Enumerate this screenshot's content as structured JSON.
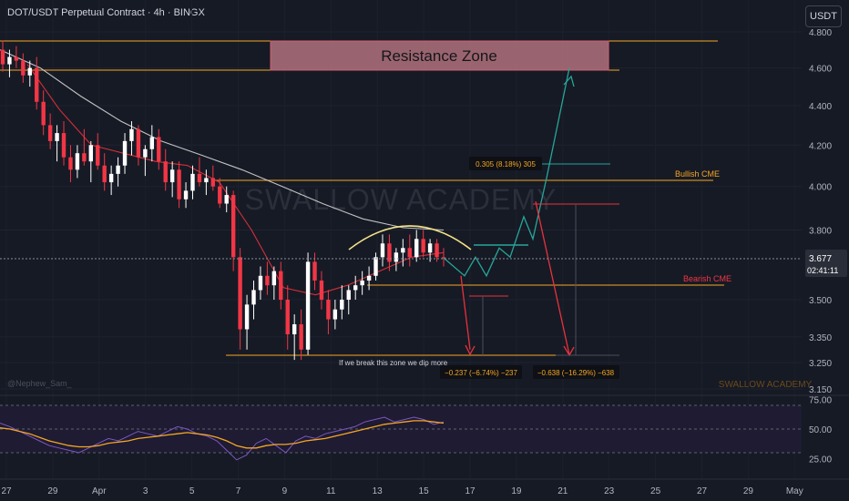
{
  "header": {
    "title": "DOT/USDT Perpetual Contract · 4h · BINGX",
    "currency_button": "USDT"
  },
  "price_tag": {
    "price": "3.677",
    "countdown": "02:41:11"
  },
  "watermark": "SWALLOW ACADEMY",
  "watermark_small": "SWALLOW ACADEMY",
  "author": "@Nephew_Sam_",
  "annotations": {
    "resistance_zone": "Resistance Zone",
    "bullish_cme": "Bullish CME",
    "bearish_cme": "Bearish CME",
    "break_note": "If we break this zone we dip more",
    "measure_up": "0.305 (8.18%) 305",
    "measure_down1": "−0.237 (−6.74%) −237",
    "measure_down2": "−0.638 (−16.29%) −638"
  },
  "colors": {
    "background": "#161a25",
    "up": "#ffffff",
    "down": "#f23645",
    "zone_line": "#f5a623",
    "resistance_fill": "#b0727c",
    "ma_slow": "#e0e0e0",
    "ma_fast": "#e8323c",
    "bull_path": "#26a69a",
    "bear_path": "#e8323c",
    "rsi": "#7e57c2",
    "rsi_ma": "#f5a623"
  },
  "chart_data": [
    {
      "type": "candlestick",
      "title": "DOT/USDT Perpetual Contract · 4h · BINGX",
      "x_ticks": [
        "27",
        "29",
        "Apr",
        "3",
        "5",
        "7",
        "9",
        "11",
        "13",
        "15",
        "17",
        "19",
        "21",
        "23",
        "25",
        "27",
        "29",
        "May"
      ],
      "y_ticks": [
        "4.800",
        "4.600",
        "4.400",
        "4.200",
        "4.000",
        "3.800",
        "3.677",
        "3.500",
        "3.350",
        "3.250",
        "3.150"
      ],
      "y_scale": "log",
      "ylim": [
        3.13,
        4.85
      ],
      "last_price": 3.677,
      "levels": {
        "resistance_zone": [
          4.6,
          4.75
        ],
        "bullish_cme": 4.03,
        "bearish_cme": 3.6,
        "support": 3.28
      },
      "ohlc": [
        [
          4.7,
          4.75,
          4.58,
          4.62
        ],
        [
          4.62,
          4.7,
          4.55,
          4.66
        ],
        [
          4.66,
          4.72,
          4.6,
          4.64
        ],
        [
          4.64,
          4.68,
          4.52,
          4.56
        ],
        [
          4.56,
          4.64,
          4.5,
          4.6
        ],
        [
          4.6,
          4.66,
          4.38,
          4.42
        ],
        [
          4.42,
          4.48,
          4.25,
          4.3
        ],
        [
          4.3,
          4.36,
          4.18,
          4.22
        ],
        [
          4.22,
          4.3,
          4.12,
          4.26
        ],
        [
          4.26,
          4.32,
          4.1,
          4.14
        ],
        [
          4.14,
          4.2,
          4.02,
          4.08
        ],
        [
          4.08,
          4.2,
          4.04,
          4.16
        ],
        [
          4.16,
          4.28,
          4.1,
          4.12
        ],
        [
          4.12,
          4.22,
          4.02,
          4.2
        ],
        [
          4.2,
          4.26,
          4.08,
          4.1
        ],
        [
          4.1,
          4.16,
          3.98,
          4.02
        ],
        [
          4.02,
          4.1,
          3.96,
          4.06
        ],
        [
          4.06,
          4.14,
          4.0,
          4.1
        ],
        [
          4.1,
          4.26,
          4.06,
          4.22
        ],
        [
          4.22,
          4.32,
          4.15,
          4.28
        ],
        [
          4.28,
          4.3,
          4.1,
          4.14
        ],
        [
          4.14,
          4.2,
          4.05,
          4.18
        ],
        [
          4.18,
          4.3,
          4.12,
          4.24
        ],
        [
          4.24,
          4.28,
          4.08,
          4.12
        ],
        [
          4.12,
          4.18,
          3.98,
          4.02
        ],
        [
          4.02,
          4.12,
          3.95,
          4.08
        ],
        [
          4.08,
          4.12,
          3.9,
          3.94
        ],
        [
          3.94,
          4.02,
          3.9,
          3.98
        ],
        [
          3.98,
          4.1,
          3.94,
          4.06
        ],
        [
          4.06,
          4.14,
          4.0,
          4.02
        ],
        [
          4.02,
          4.08,
          3.96,
          4.04
        ],
        [
          4.04,
          4.1,
          3.98,
          4.0
        ],
        [
          4.0,
          4.04,
          3.9,
          3.92
        ],
        [
          3.92,
          4.0,
          3.88,
          3.96
        ],
        [
          3.96,
          3.98,
          3.62,
          3.68
        ],
        [
          3.68,
          3.72,
          3.3,
          3.38
        ],
        [
          3.38,
          3.52,
          3.3,
          3.48
        ],
        [
          3.48,
          3.58,
          3.42,
          3.54
        ],
        [
          3.54,
          3.64,
          3.5,
          3.6
        ],
        [
          3.6,
          3.66,
          3.52,
          3.56
        ],
        [
          3.56,
          3.64,
          3.5,
          3.62
        ],
        [
          3.62,
          3.66,
          3.46,
          3.5
        ],
        [
          3.5,
          3.56,
          3.3,
          3.36
        ],
        [
          3.36,
          3.44,
          3.26,
          3.4
        ],
        [
          3.4,
          3.46,
          3.26,
          3.3
        ],
        [
          3.3,
          3.7,
          3.28,
          3.66
        ],
        [
          3.66,
          3.7,
          3.54,
          3.58
        ],
        [
          3.58,
          3.62,
          3.46,
          3.5
        ],
        [
          3.5,
          3.54,
          3.36,
          3.42
        ],
        [
          3.42,
          3.5,
          3.38,
          3.46
        ],
        [
          3.46,
          3.56,
          3.42,
          3.5
        ],
        [
          3.5,
          3.56,
          3.44,
          3.54
        ],
        [
          3.54,
          3.6,
          3.5,
          3.56
        ],
        [
          3.56,
          3.62,
          3.52,
          3.58
        ],
        [
          3.58,
          3.64,
          3.54,
          3.6
        ],
        [
          3.6,
          3.7,
          3.58,
          3.68
        ],
        [
          3.68,
          3.78,
          3.64,
          3.74
        ],
        [
          3.74,
          3.78,
          3.62,
          3.66
        ],
        [
          3.66,
          3.72,
          3.62,
          3.7
        ],
        [
          3.7,
          3.76,
          3.64,
          3.72
        ],
        [
          3.72,
          3.78,
          3.64,
          3.68
        ],
        [
          3.68,
          3.8,
          3.66,
          3.76
        ],
        [
          3.76,
          3.8,
          3.68,
          3.7
        ],
        [
          3.7,
          3.76,
          3.66,
          3.74
        ],
        [
          3.74,
          3.76,
          3.66,
          3.68
        ],
        [
          3.68,
          3.72,
          3.64,
          3.677
        ]
      ],
      "sma_slow": [
        4.7,
        4.6,
        4.45,
        4.32,
        4.22,
        4.15,
        4.08,
        4.0,
        3.92,
        3.85,
        3.81,
        3.8
      ],
      "sma_fast": [
        4.62,
        4.38,
        4.2,
        4.16,
        4.12,
        4.1,
        4.02,
        3.8,
        3.55,
        3.52,
        3.56,
        3.62,
        3.68,
        3.7
      ],
      "projection": {
        "bullish": [
          3.677,
          3.6,
          3.68,
          3.6,
          3.72,
          3.68,
          3.86,
          3.76,
          4.04,
          4.6
        ],
        "bearish": [
          3.6,
          3.3,
          3.93,
          3.28
        ]
      }
    },
    {
      "type": "line",
      "title": "",
      "y_ticks": [
        "75.00",
        "50.00",
        "25.00"
      ],
      "ylim": [
        14,
        78
      ],
      "bands": [
        30,
        50,
        70
      ],
      "series": [
        {
          "values": [
            55,
            52,
            48,
            44,
            40,
            36,
            34,
            32,
            30,
            34,
            38,
            42,
            40,
            44,
            48,
            46,
            44,
            48,
            52,
            50,
            46,
            44,
            40,
            32,
            24,
            28,
            38,
            42,
            36,
            30,
            40,
            44,
            42,
            46,
            48,
            50,
            52,
            56,
            58,
            60,
            56,
            58,
            60,
            58,
            54,
            56
          ]
        },
        {
          "values": [
            51,
            50,
            48,
            46,
            43,
            40,
            38,
            36,
            35,
            35,
            36,
            38,
            39,
            40,
            42,
            43,
            44,
            45,
            46,
            47,
            46,
            45,
            43,
            40,
            36,
            34,
            34,
            36,
            37,
            37,
            38,
            40,
            41,
            42,
            44,
            46,
            48,
            50,
            52,
            54,
            55,
            56,
            57,
            57,
            56,
            55
          ]
        }
      ]
    }
  ]
}
